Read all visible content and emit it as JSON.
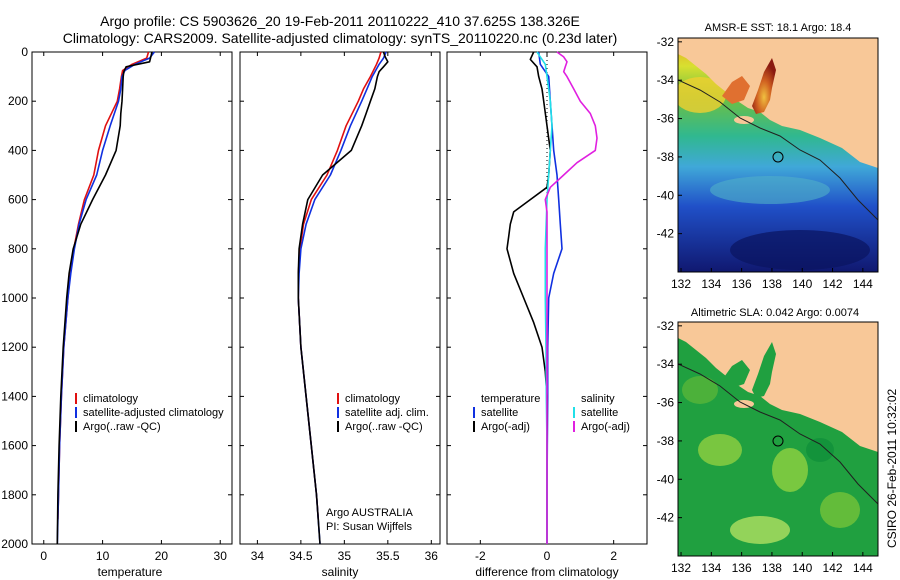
{
  "page": {
    "title_line1": "Argo profile: CS 5903626_20 19-Feb-2011 20110222_410 37.625S 138.326E",
    "title_line2": "Climatology: CARS2009. Satellite-adjusted climatology: synTS_20110220.nc (0.23d later)",
    "credit": "CSIRO 26-Feb-2011 10:32:02",
    "argo_label_line1": "Argo AUSTRALIA",
    "argo_label_line2": "PI: Susan Wijffels"
  },
  "colors": {
    "climatology": "#e01010",
    "satellite": "#1030e0",
    "argo": "#000000",
    "sat_diff_salinity": "#20e0e8",
    "argo_diff_salinity": "#e020e0",
    "land": "#f8c898"
  },
  "chart_data": [
    {
      "type": "line",
      "name": "temperature_profile",
      "xlabel": "temperature",
      "xlim": [
        -2,
        32
      ],
      "ylim": [
        2000,
        0
      ],
      "xticks": [
        "0",
        "10",
        "20",
        "30"
      ],
      "yticks": [
        "0",
        "200",
        "400",
        "600",
        "800",
        "1000",
        "1200",
        "1400",
        "1600",
        "1800",
        "2000"
      ],
      "legend": [
        "climatology",
        "satellite-adjusted climatology",
        "Argo(..raw -QC)"
      ],
      "series": [
        {
          "name": "climatology",
          "depth": [
            0,
            25,
            50,
            75,
            100,
            150,
            200,
            300,
            400,
            500,
            600,
            700,
            800,
            900,
            1000,
            1200,
            1400,
            1600,
            1800,
            1900
          ],
          "values": [
            17.8,
            17.5,
            15,
            13.4,
            13.2,
            12.9,
            12.5,
            10.5,
            9.3,
            8.5,
            6.9,
            5.9,
            5.1,
            4.5,
            4.1,
            3.4,
            3.0,
            2.7,
            2.5,
            2.4
          ]
        },
        {
          "name": "satellite",
          "depth": [
            0,
            25,
            50,
            75,
            100,
            150,
            200,
            300,
            400,
            500,
            600,
            700,
            800,
            900,
            1000,
            1200,
            1400,
            1600,
            1800,
            2000
          ],
          "values": [
            18.8,
            18,
            15.5,
            13.8,
            13.3,
            13.1,
            12.7,
            11.3,
            10,
            9,
            7.2,
            6.0,
            5.2,
            4.6,
            4.1,
            3.4,
            3.0,
            2.7,
            2.5,
            2.3
          ]
        },
        {
          "name": "Argo(..raw -QC)",
          "depth": [
            0,
            20,
            40,
            60,
            80,
            100,
            150,
            200,
            250,
            300,
            400,
            500,
            600,
            700,
            800,
            900,
            1000,
            1200,
            1400,
            1600,
            1800,
            2000
          ],
          "values": [
            18.4,
            18.2,
            18,
            14,
            13.6,
            13.5,
            13.4,
            13.3,
            13.1,
            13,
            12.3,
            10.5,
            8.3,
            6.3,
            5.0,
            4.3,
            3.9,
            3.3,
            2.9,
            2.6,
            2.4,
            2.3
          ]
        }
      ]
    },
    {
      "type": "line",
      "name": "salinity_profile",
      "xlabel": "salinity",
      "xlim": [
        33.8,
        36.1
      ],
      "ylim": [
        2000,
        0
      ],
      "xticks": [
        "34",
        "34.5",
        "35",
        "35.5",
        "36"
      ],
      "legend": [
        "climatology",
        "satellite adj. clim.",
        "Argo(..raw -QC)"
      ],
      "series": [
        {
          "name": "climatology",
          "depth": [
            0,
            25,
            50,
            100,
            150,
            200,
            300,
            400,
            500,
            600,
            700,
            800,
            900,
            1000,
            1200,
            1400,
            1600,
            1800,
            1900
          ],
          "values": [
            35.42,
            35.4,
            35.37,
            35.3,
            35.22,
            35.16,
            35.02,
            34.92,
            34.8,
            34.62,
            34.53,
            34.49,
            34.47,
            34.47,
            34.5,
            34.56,
            34.62,
            34.68,
            34.7
          ]
        },
        {
          "name": "satellite",
          "depth": [
            0,
            25,
            50,
            100,
            150,
            200,
            300,
            400,
            500,
            600,
            700,
            800,
            900,
            1000,
            1200,
            1400,
            1600,
            1800,
            2000
          ],
          "values": [
            35.48,
            35.45,
            35.4,
            35.32,
            35.26,
            35.2,
            35.07,
            34.96,
            34.84,
            34.66,
            34.56,
            34.5,
            34.48,
            34.47,
            34.5,
            34.56,
            34.62,
            34.68,
            34.72
          ]
        },
        {
          "name": "Argo(..raw -QC)",
          "depth": [
            0,
            20,
            40,
            60,
            80,
            100,
            150,
            200,
            250,
            300,
            400,
            500,
            600,
            700,
            800,
            900,
            1000,
            1200,
            1400,
            1600,
            1800,
            2000
          ],
          "values": [
            35.45,
            35.47,
            35.5,
            35.45,
            35.4,
            35.38,
            35.35,
            35.3,
            35.25,
            35.2,
            35.08,
            34.75,
            34.58,
            34.52,
            34.48,
            34.47,
            34.47,
            34.5,
            34.56,
            34.62,
            34.68,
            34.72
          ]
        }
      ]
    },
    {
      "type": "line",
      "name": "difference_profile",
      "xlabel": "difference from climatology",
      "xlim": [
        -3,
        3
      ],
      "ylim": [
        2000,
        0
      ],
      "xticks": [
        "-2",
        "0",
        "2"
      ],
      "legend": [
        "temperature",
        "satellite",
        "Argo(-adj)",
        "salinity",
        "satellite",
        "Argo(-adj)"
      ],
      "series": [
        {
          "name": "temperature satellite",
          "depth": [
            0,
            50,
            100,
            200,
            300,
            400,
            500,
            600,
            700,
            800,
            900,
            1000,
            1200,
            1400,
            1600,
            1800,
            2000
          ],
          "values": [
            -0.25,
            -0.2,
            0.05,
            0.1,
            0.15,
            0.2,
            0.3,
            0.35,
            0.4,
            0.45,
            0.2,
            0.05,
            0.02,
            0.02,
            0.01,
            0.0,
            0.0
          ]
        },
        {
          "name": "temperature Argo(-adj)",
          "depth": [
            0,
            30,
            60,
            100,
            150,
            200,
            300,
            400,
            500,
            550,
            600,
            650,
            700,
            750,
            800,
            900,
            1000,
            1100,
            1200,
            1300,
            1400,
            1600,
            1800,
            2000
          ],
          "values": [
            -0.4,
            -0.5,
            -0.3,
            -0.25,
            -0.15,
            -0.1,
            0.0,
            0.1,
            0.05,
            0.0,
            -0.5,
            -1.0,
            -1.1,
            -1.15,
            -1.2,
            -1.0,
            -0.7,
            -0.4,
            -0.15,
            -0.05,
            0.0,
            0.0,
            0.0,
            0.0
          ]
        },
        {
          "name": "salinity satellite",
          "depth": [
            0,
            20,
            50,
            100,
            150,
            200,
            300,
            400,
            500,
            600,
            800,
            1000,
            1200,
            1400,
            1600,
            1800,
            2000
          ],
          "values": [
            -0.3,
            -0.2,
            -0.05,
            0.0,
            0.05,
            0.1,
            0.15,
            0.1,
            0.05,
            0.0,
            -0.05,
            -0.05,
            -0.03,
            -0.02,
            0.0,
            0.0,
            0.0
          ]
        },
        {
          "name": "salinity Argo(-adj)",
          "depth": [
            0,
            20,
            40,
            60,
            80,
            100,
            150,
            200,
            250,
            300,
            350,
            400,
            450,
            500,
            550,
            600,
            650,
            800,
            1000,
            1500,
            2000
          ],
          "values": [
            0.3,
            0.5,
            0.6,
            0.55,
            0.5,
            0.6,
            0.8,
            1.0,
            1.3,
            1.45,
            1.5,
            1.45,
            0.9,
            0.5,
            0.1,
            -0.05,
            0.0,
            0.0,
            0.0,
            0.0,
            0.0
          ]
        }
      ]
    },
    {
      "type": "heatmap",
      "name": "sst_map",
      "title": "AMSR-E SST: 18.1 Argo: 18.4",
      "xlim": [
        131.8,
        145
      ],
      "ylim": [
        -44,
        -31.8
      ],
      "xticks": [
        "132",
        "134",
        "136",
        "138",
        "140",
        "142",
        "144"
      ],
      "yticks": [
        "-32",
        "-34",
        "-36",
        "-38",
        "-40",
        "-42"
      ],
      "argo_position": [
        138.33,
        -37.63
      ]
    },
    {
      "type": "heatmap",
      "name": "sla_map",
      "title": "Altimetric SLA: 0.042 Argo: 0.0074",
      "xlim": [
        131.8,
        145
      ],
      "ylim": [
        -44,
        -31.8
      ],
      "xticks": [
        "132",
        "134",
        "136",
        "138",
        "140",
        "142",
        "144"
      ],
      "yticks": [
        "-32",
        "-34",
        "-36",
        "-38",
        "-40",
        "-42"
      ],
      "argo_position": [
        138.33,
        -37.63
      ]
    }
  ]
}
